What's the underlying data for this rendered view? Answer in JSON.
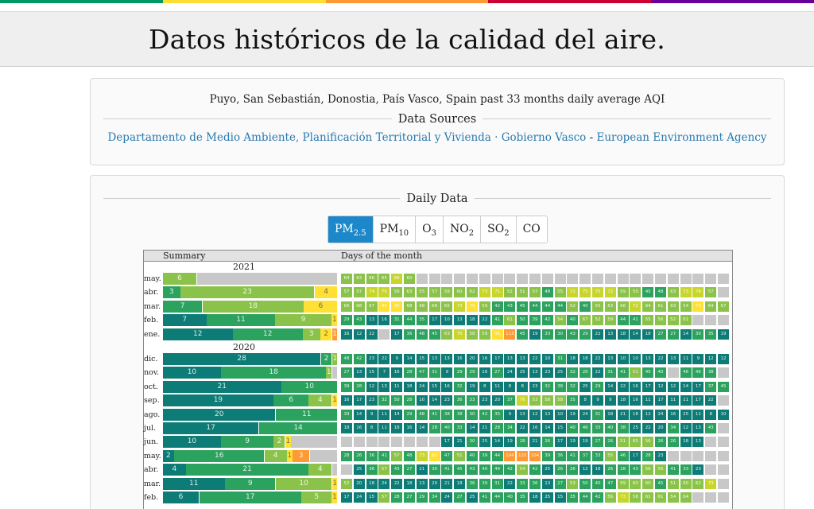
{
  "page_title": "Datos históricos de la calidad del aire.",
  "stripe_colors": [
    "#009966",
    "#ffde33",
    "#ff9933",
    "#cc0033",
    "#660099"
  ],
  "location_text": "Puyo, San Sebastián, Donostia, País Vasco, Spain past 33 months daily average AQI",
  "data_sources_label": "Data Sources",
  "sources": {
    "link1": "Departamento de Medio Ambiente, Planificación Territorial y Vivienda · Gobierno Vasco",
    "separator": "-",
    "link2": "European Environment Agency"
  },
  "daily_data_label": "Daily Data",
  "tabs": [
    {
      "base": "PM",
      "sub": "2.5",
      "active": true
    },
    {
      "base": "PM",
      "sub": "10",
      "active": false
    },
    {
      "base": "O",
      "sub": "3",
      "active": false
    },
    {
      "base": "NO",
      "sub": "2",
      "active": false
    },
    {
      "base": "SO",
      "sub": "2",
      "active": false
    },
    {
      "base": "CO",
      "sub": "",
      "active": false
    }
  ],
  "grid_header": {
    "summary": "Summary",
    "days": "Days of the month"
  },
  "aqi_colors": {
    "dark_teal": "#0e7c76",
    "green": "#2ca25f",
    "light_green": "#8bc34a",
    "yellow_green": "#c8d62c",
    "yellow": "#ffe033",
    "orange": "#ff9933",
    "gray": "#c8c8c8"
  },
  "years": [
    {
      "year": "2021",
      "months": [
        {
          "label": "may.",
          "summary": [
            {
              "count": 6,
              "level": "light_green"
            },
            {
              "count": 25,
              "level": "gray"
            }
          ],
          "days": [
            64,
            63,
            66,
            65,
            69,
            60,
            null,
            null,
            null,
            null,
            null,
            null,
            null,
            null,
            null,
            null,
            null,
            null,
            null,
            null,
            null,
            null,
            null,
            null,
            null,
            null,
            null,
            null,
            null,
            null,
            null
          ]
        },
        {
          "label": "abr.",
          "summary": [
            {
              "count": 3,
              "level": "green"
            },
            {
              "count": 23,
              "level": "light_green"
            },
            {
              "count": 4,
              "level": "yellow"
            }
          ],
          "days": [
            57,
            57,
            74,
            76,
            59,
            63,
            55,
            57,
            59,
            60,
            62,
            73,
            71,
            52,
            51,
            57,
            48,
            55,
            72,
            75,
            75,
            72,
            59,
            55,
            45,
            48,
            63,
            73,
            76,
            57,
            null
          ]
        },
        {
          "label": "mar.",
          "summary": [
            {
              "count": 7,
              "level": "green"
            },
            {
              "count": 18,
              "level": "light_green"
            },
            {
              "count": 6,
              "level": "yellow"
            }
          ],
          "days": [
            66,
            68,
            67,
            84,
            96,
            68,
            68,
            68,
            65,
            73,
            79,
            59,
            42,
            43,
            45,
            44,
            44,
            44,
            52,
            40,
            55,
            63,
            66,
            72,
            64,
            61,
            63,
            54,
            79,
            64,
            67
          ]
        },
        {
          "label": "feb.",
          "summary": [
            {
              "count": 7,
              "level": "dark_teal"
            },
            {
              "count": 11,
              "level": "green"
            },
            {
              "count": 9,
              "level": "light_green"
            },
            {
              "count": 1,
              "level": "yellow"
            }
          ],
          "days": [
            29,
            43,
            13,
            16,
            31,
            44,
            35,
            17,
            10,
            13,
            18,
            22,
            41,
            61,
            50,
            39,
            42,
            54,
            40,
            67,
            52,
            59,
            44,
            41,
            55,
            56,
            52,
            61,
            null,
            null,
            null
          ]
        },
        {
          "label": "ene.",
          "summary": [
            {
              "count": 12,
              "level": "dark_teal"
            },
            {
              "count": 12,
              "level": "green"
            },
            {
              "count": 3,
              "level": "light_green"
            },
            {
              "count": 2,
              "level": "yellow"
            },
            {
              "count": 1,
              "level": "orange"
            }
          ],
          "days": [
            16,
            12,
            22,
            null,
            17,
            36,
            48,
            45,
            63,
            75,
            58,
            59,
            95,
            113,
            45,
            19,
            33,
            30,
            43,
            29,
            22,
            13,
            18,
            14,
            18,
            27,
            27,
            14,
            30,
            35,
            19
          ]
        }
      ]
    },
    {
      "year": "2020",
      "months": [
        {
          "label": "dic.",
          "summary": [
            {
              "count": 28,
              "level": "dark_teal"
            },
            {
              "count": 2,
              "level": "green"
            },
            {
              "count": 1,
              "level": "light_green"
            }
          ],
          "days": [
            48,
            42,
            23,
            22,
            9,
            14,
            15,
            13,
            13,
            16,
            20,
            16,
            17,
            13,
            13,
            22,
            10,
            31,
            18,
            18,
            22,
            13,
            10,
            10,
            13,
            22,
            13,
            11,
            9,
            12,
            12
          ]
        },
        {
          "label": "nov.",
          "summary": [
            {
              "count": 10,
              "level": "dark_teal"
            },
            {
              "count": 18,
              "level": "green"
            },
            {
              "count": 1,
              "level": "light_green"
            },
            {
              "count": 1,
              "level": "gray"
            }
          ],
          "days": [
            27,
            13,
            15,
            7,
            16,
            28,
            47,
            31,
            9,
            29,
            29,
            16,
            27,
            24,
            25,
            13,
            23,
            25,
            32,
            26,
            22,
            31,
            41,
            51,
            45,
            40,
            null,
            46,
            46,
            38,
            null
          ]
        },
        {
          "label": "oct.",
          "summary": [
            {
              "count": 21,
              "level": "dark_teal"
            },
            {
              "count": 10,
              "level": "green"
            }
          ],
          "days": [
            39,
            28,
            12,
            13,
            11,
            18,
            24,
            15,
            16,
            32,
            19,
            8,
            11,
            8,
            8,
            23,
            32,
            38,
            32,
            25,
            29,
            14,
            22,
            16,
            17,
            12,
            12,
            14,
            17,
            37,
            45
          ]
        },
        {
          "label": "sep.",
          "summary": [
            {
              "count": 19,
              "level": "dark_teal"
            },
            {
              "count": 6,
              "level": "green"
            },
            {
              "count": 4,
              "level": "light_green"
            },
            {
              "count": 1,
              "level": "yellow"
            }
          ],
          "days": [
            16,
            17,
            23,
            32,
            50,
            28,
            10,
            14,
            23,
            36,
            33,
            23,
            20,
            37,
            76,
            53,
            58,
            58,
            35,
            8,
            9,
            9,
            18,
            16,
            11,
            17,
            11,
            11,
            17,
            22,
            null
          ]
        },
        {
          "label": "ago.",
          "summary": [
            {
              "count": 20,
              "level": "dark_teal"
            },
            {
              "count": 11,
              "level": "green"
            }
          ],
          "days": [
            39,
            14,
            9,
            11,
            14,
            29,
            48,
            41,
            38,
            38,
            30,
            42,
            35,
            9,
            13,
            12,
            13,
            10,
            19,
            24,
            31,
            18,
            21,
            18,
            12,
            24,
            16,
            25,
            11,
            8,
            10
          ]
        },
        {
          "label": "jul.",
          "summary": [
            {
              "count": 17,
              "level": "dark_teal"
            },
            {
              "count": 14,
              "level": "green"
            }
          ],
          "days": [
            18,
            16,
            8,
            11,
            18,
            16,
            14,
            28,
            40,
            33,
            14,
            21,
            28,
            34,
            22,
            16,
            14,
            15,
            40,
            46,
            33,
            40,
            38,
            25,
            22,
            20,
            34,
            12,
            13,
            43,
            null
          ]
        },
        {
          "label": "jun.",
          "summary": [
            {
              "count": 10,
              "level": "dark_teal"
            },
            {
              "count": 9,
              "level": "green"
            },
            {
              "count": 2,
              "level": "light_green"
            },
            {
              "count": 1,
              "level": "yellow"
            },
            {
              "count": 8,
              "level": "gray"
            }
          ],
          "days": [
            null,
            null,
            null,
            null,
            null,
            null,
            null,
            null,
            17,
            21,
            30,
            25,
            14,
            19,
            28,
            21,
            26,
            17,
            19,
            19,
            27,
            26,
            51,
            65,
            56,
            26,
            26,
            18,
            13,
            null,
            null
          ]
        },
        {
          "label": "may.",
          "summary": [
            {
              "count": 2,
              "level": "dark_teal"
            },
            {
              "count": 16,
              "level": "green"
            },
            {
              "count": 4,
              "level": "light_green"
            },
            {
              "count": 1,
              "level": "yellow"
            },
            {
              "count": 3,
              "level": "orange"
            },
            {
              "count": 5,
              "level": "gray"
            }
          ],
          "days": [
            28,
            26,
            36,
            41,
            57,
            48,
            73,
            82,
            47,
            51,
            40,
            39,
            44,
            104,
            120,
            104,
            39,
            36,
            41,
            37,
            33,
            55,
            46,
            17,
            28,
            23,
            null,
            null,
            null,
            null,
            null
          ]
        },
        {
          "label": "abr.",
          "summary": [
            {
              "count": 4,
              "level": "dark_teal"
            },
            {
              "count": 21,
              "level": "green"
            },
            {
              "count": 4,
              "level": "light_green"
            },
            {
              "count": 1,
              "level": "gray"
            }
          ],
          "days": [
            null,
            25,
            36,
            57,
            43,
            27,
            21,
            30,
            41,
            45,
            43,
            40,
            44,
            42,
            54,
            42,
            25,
            26,
            26,
            12,
            18,
            26,
            28,
            43,
            56,
            56,
            41,
            33,
            23,
            null,
            null
          ]
        },
        {
          "label": "mar.",
          "summary": [
            {
              "count": 11,
              "level": "dark_teal"
            },
            {
              "count": 9,
              "level": "green"
            },
            {
              "count": 10,
              "level": "light_green"
            },
            {
              "count": 1,
              "level": "yellow"
            }
          ],
          "days": [
            52,
            20,
            18,
            24,
            22,
            18,
            13,
            20,
            21,
            18,
            36,
            39,
            31,
            22,
            33,
            36,
            13,
            27,
            53,
            50,
            40,
            47,
            59,
            60,
            60,
            45,
            51,
            60,
            62,
            73,
            null
          ]
        },
        {
          "label": "feb.",
          "summary": [
            {
              "count": 6,
              "level": "dark_teal"
            },
            {
              "count": 17,
              "level": "green"
            },
            {
              "count": 5,
              "level": "light_green"
            },
            {
              "count": 1,
              "level": "yellow"
            }
          ],
          "days": [
            17,
            24,
            15,
            57,
            28,
            27,
            29,
            34,
            24,
            27,
            25,
            41,
            44,
            40,
            35,
            18,
            25,
            15,
            35,
            44,
            42,
            56,
            73,
            58,
            61,
            61,
            54,
            64,
            null,
            null,
            null
          ]
        }
      ]
    }
  ]
}
